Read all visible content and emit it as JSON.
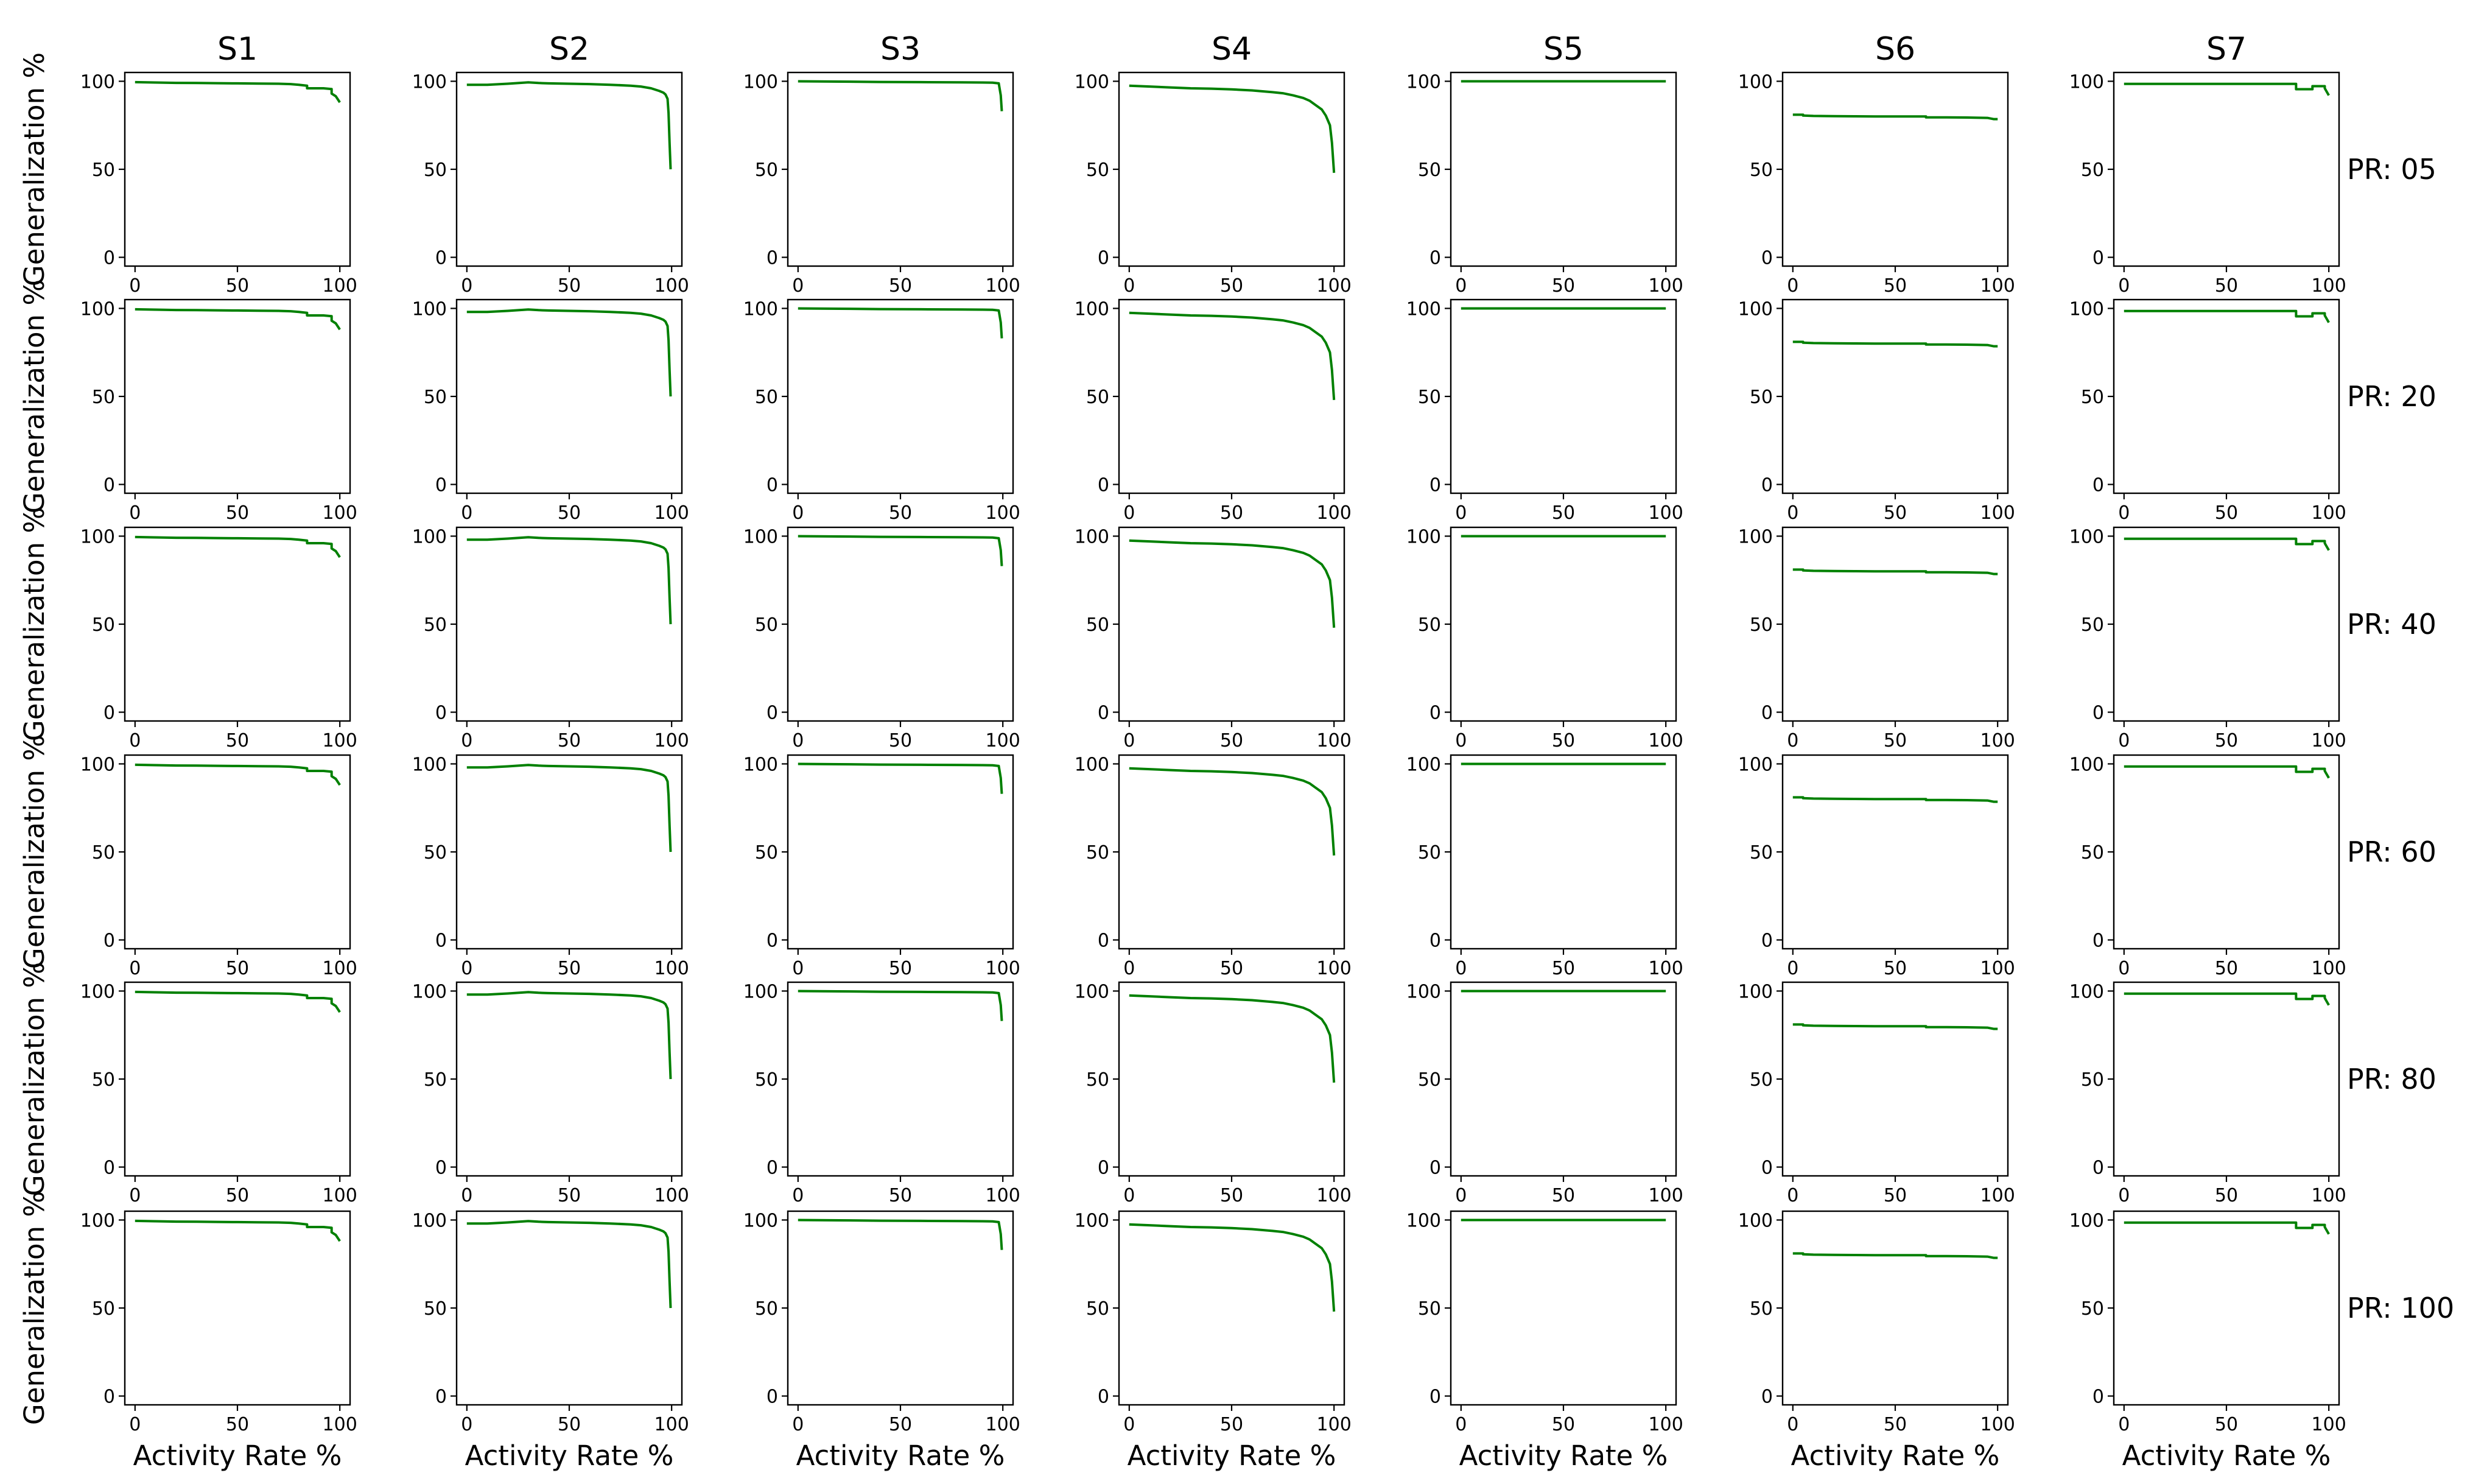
{
  "figure": {
    "line_color": "#008000",
    "x_ticks": [
      "0",
      "50",
      "100"
    ],
    "y_ticks": [
      "0",
      "50",
      "100"
    ],
    "xlim": [
      -5,
      105
    ],
    "ylim": [
      -5,
      105
    ],
    "ylabel": "Generalization %",
    "xlabel": "Activity Rate %"
  },
  "chart_data": {
    "type": "line",
    "layout": "grid of small multiples (6 rows x 7 columns)",
    "columns": [
      "S1",
      "S2",
      "S3",
      "S4",
      "S5",
      "S6",
      "S7"
    ],
    "rows": [
      "PR: 05",
      "PR: 20",
      "PR: 40",
      "PR: 60",
      "PR: 80",
      "PR: 100"
    ],
    "xlabel": "Activity Rate %",
    "ylabel": "Generalization %",
    "x_ticks": [
      0,
      50,
      100
    ],
    "y_ticks": [
      0,
      50,
      100
    ],
    "grid": false,
    "note_rows_identical": true,
    "series_by_column": {
      "S1": {
        "x": [
          0,
          10,
          20,
          30,
          40,
          50,
          60,
          70,
          76,
          80,
          84,
          84,
          90,
          92,
          96,
          96,
          98,
          100
        ],
        "y": [
          99.5,
          99.3,
          99.1,
          99,
          98.9,
          98.8,
          98.7,
          98.6,
          98.4,
          98,
          97.5,
          96,
          96,
          96,
          95.6,
          93,
          91.5,
          88
        ]
      },
      "S2": {
        "x": [
          0,
          10,
          20,
          30,
          35,
          40,
          50,
          60,
          70,
          80,
          85,
          90,
          94,
          96,
          97,
          98,
          98.5,
          99,
          99.5
        ],
        "y": [
          98,
          98,
          98.6,
          99.4,
          99,
          98.8,
          98.6,
          98.4,
          98,
          97.5,
          97,
          96,
          94.5,
          93.5,
          92.5,
          90,
          82,
          65,
          50
        ]
      },
      "S3": {
        "x": [
          0,
          20,
          40,
          60,
          80,
          90,
          95,
          98,
          99,
          99.5
        ],
        "y": [
          100,
          99.8,
          99.6,
          99.5,
          99.4,
          99.3,
          99.2,
          98.8,
          92,
          83
        ]
      },
      "S4": {
        "x": [
          0,
          10,
          20,
          30,
          40,
          50,
          60,
          70,
          75,
          80,
          85,
          88,
          91,
          94,
          96,
          98,
          99,
          100
        ],
        "y": [
          97.5,
          97,
          96.5,
          96,
          95.8,
          95.4,
          94.8,
          93.8,
          93.2,
          92,
          90.5,
          89,
          86.5,
          84,
          80.5,
          75,
          65,
          48
        ]
      },
      "S5": {
        "x": [
          0,
          25,
          50,
          75,
          100
        ],
        "y": [
          100,
          100,
          100,
          100,
          100
        ]
      },
      "S6": {
        "x": [
          0,
          5,
          5,
          10,
          20,
          30,
          40,
          50,
          60,
          65,
          65,
          75,
          85,
          95,
          98,
          100
        ],
        "y": [
          81,
          81,
          80.5,
          80.3,
          80.2,
          80.1,
          80,
          80,
          80,
          80,
          79.5,
          79.5,
          79.4,
          79.2,
          78.5,
          78.5
        ]
      },
      "S7": {
        "x": [
          0,
          20,
          40,
          60,
          84,
          84,
          88,
          92,
          92,
          98,
          98,
          100
        ],
        "y": [
          98.5,
          98.5,
          98.5,
          98.5,
          98.5,
          95.5,
          95.5,
          95.5,
          97.2,
          97.2,
          96,
          92
        ]
      }
    }
  }
}
